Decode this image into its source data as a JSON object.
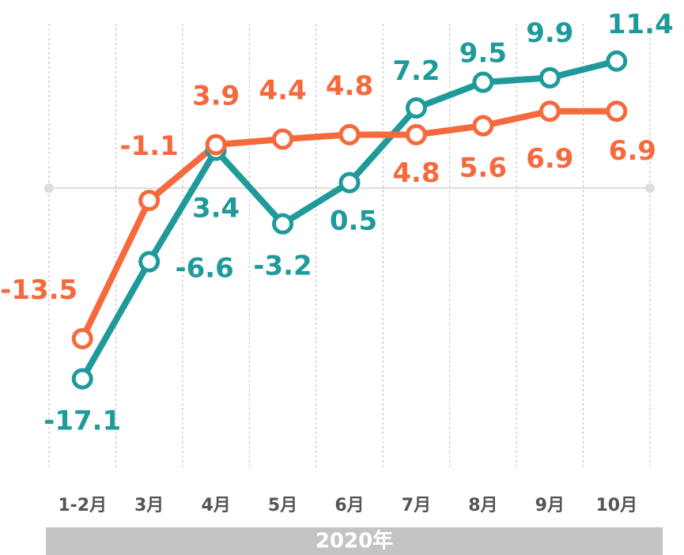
{
  "chart_data": {
    "type": "line",
    "categories": [
      "1-2月",
      "3月",
      "4月",
      "5月",
      "6月",
      "7月",
      "8月",
      "9月",
      "10月"
    ],
    "series": [
      {
        "color": "#1f9a9a",
        "values": [
          -17.1,
          -6.6,
          3.4,
          -3.2,
          0.5,
          7.2,
          9.5,
          9.9,
          11.4
        ]
      },
      {
        "color": "#f5693c",
        "values": [
          -13.5,
          -1.1,
          3.9,
          4.4,
          4.8,
          4.8,
          5.6,
          6.9,
          6.9
        ]
      }
    ],
    "ylim": [
      -25,
      15
    ],
    "xlabel": "2020年"
  }
}
